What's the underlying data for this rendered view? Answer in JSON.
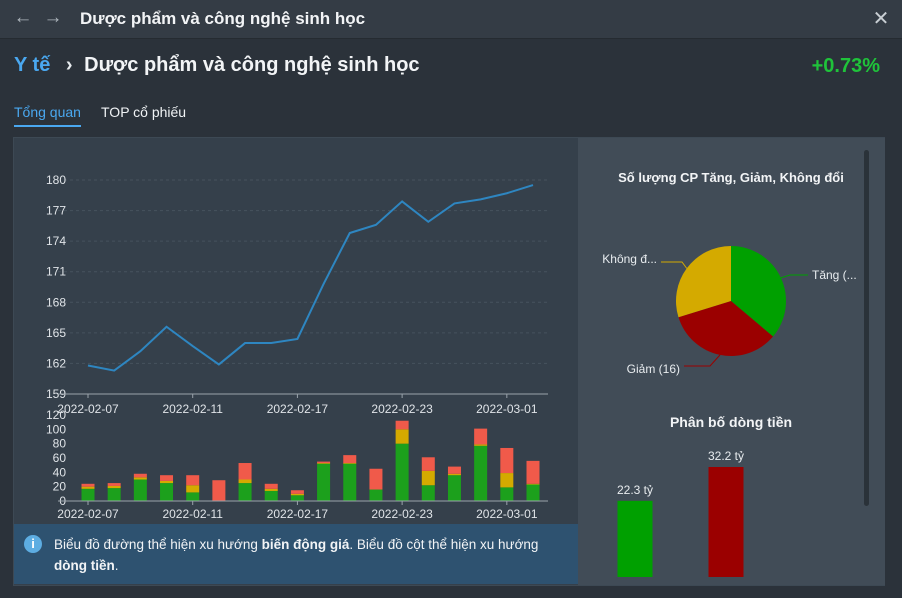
{
  "titlebar": {
    "back_icon": "←",
    "forward_icon": "→",
    "title": "Dược phẩm và công nghệ sinh học",
    "close_icon": "✕"
  },
  "header": {
    "parent": "Y tế",
    "separator": "›",
    "current": "Dược phẩm và công nghệ sinh học",
    "change": "+0.73%"
  },
  "tabs": [
    {
      "label": "Tổng quan",
      "active": true
    },
    {
      "label": "TOP cổ phiếu",
      "active": false
    }
  ],
  "colors": {
    "up": "#00a000",
    "down": "#9b0000",
    "unchanged": "#d4aa00",
    "bar_up": "#1ca01c",
    "bar_down": "#f05a4a",
    "bar_unchanged": "#d4aa00",
    "line": "#2e86c1",
    "accent": "#4aa8f0",
    "positive": "#1fc33a"
  },
  "chart_data": [
    {
      "type": "line",
      "title": "",
      "x": [
        "2022-02-07",
        "2022-02-08",
        "2022-02-09",
        "2022-02-10",
        "2022-02-11",
        "2022-02-14",
        "2022-02-15",
        "2022-02-16",
        "2022-02-17",
        "2022-02-18",
        "2022-02-21",
        "2022-02-22",
        "2022-02-23",
        "2022-02-24",
        "2022-02-25",
        "2022-02-28",
        "2022-03-01",
        "2022-03-02"
      ],
      "y": [
        161.8,
        161.3,
        163.2,
        165.6,
        163.7,
        161.9,
        164.0,
        164.0,
        164.4,
        169.8,
        174.8,
        175.6,
        177.9,
        175.9,
        177.7,
        178.1,
        178.7,
        179.5
      ],
      "xticks": [
        "2022-02-07",
        "2022-02-11",
        "2022-02-17",
        "2022-02-23",
        "2022-03-01"
      ],
      "yticks": [
        "159",
        "162",
        "165",
        "168",
        "171",
        "174",
        "177",
        "180"
      ],
      "ylim": [
        159,
        181
      ],
      "grid": true
    },
    {
      "type": "bar",
      "stacked": true,
      "categories": [
        "2022-02-07",
        "2022-02-08",
        "2022-02-09",
        "2022-02-10",
        "2022-02-11",
        "2022-02-14",
        "2022-02-15",
        "2022-02-16",
        "2022-02-17",
        "2022-02-18",
        "2022-02-21",
        "2022-02-22",
        "2022-02-23",
        "2022-02-24",
        "2022-02-25",
        "2022-02-28",
        "2022-03-01",
        "2022-03-02"
      ],
      "series": [
        {
          "values": [
            17,
            18,
            30,
            25,
            12,
            0,
            25,
            14,
            8,
            52,
            52,
            16,
            80,
            22,
            36,
            77,
            19,
            23
          ]
        },
        {
          "values": [
            3,
            3,
            3,
            3,
            10,
            0,
            5,
            3,
            2,
            1,
            1,
            0,
            20,
            20,
            2,
            2,
            20,
            1
          ]
        },
        {
          "values": [
            4,
            4,
            5,
            8,
            14,
            29,
            23,
            7,
            5,
            2,
            11,
            29,
            12,
            19,
            10,
            22,
            35,
            32
          ]
        }
      ],
      "xticks": [
        "2022-02-07",
        "2022-02-11",
        "2022-02-17",
        "2022-02-23",
        "2022-03-01"
      ],
      "yticks": [
        "0",
        "20",
        "40",
        "60",
        "80",
        "100",
        "120"
      ],
      "ylim": [
        0,
        120
      ]
    },
    {
      "type": "pie",
      "title": "Số lượng CP Tăng, Giảm, Không đổi",
      "slices": [
        {
          "label": "Tăng (...",
          "value": 17,
          "color": "#00a000"
        },
        {
          "label": "Giảm (16)",
          "value": 16,
          "color": "#9b0000"
        },
        {
          "label": "Không đ...",
          "value": 14,
          "color": "#d4aa00"
        }
      ]
    },
    {
      "type": "bar",
      "title": "Phân bố dòng tiền",
      "categories": [
        "",
        ""
      ],
      "values": [
        22.3,
        32.2
      ],
      "value_labels": [
        "22.3 tỷ",
        "32.2 tỷ"
      ],
      "colors": [
        "#00a000",
        "#9b0000"
      ]
    }
  ],
  "info": {
    "icon": "i",
    "text_1": "Biểu đồ đường thể hiện xu hướng ",
    "bold_1": "biến động giá",
    "text_2": ". Biểu đồ cột thể hiện xu hướng ",
    "bold_2": "dòng tiền",
    "text_3": "."
  }
}
